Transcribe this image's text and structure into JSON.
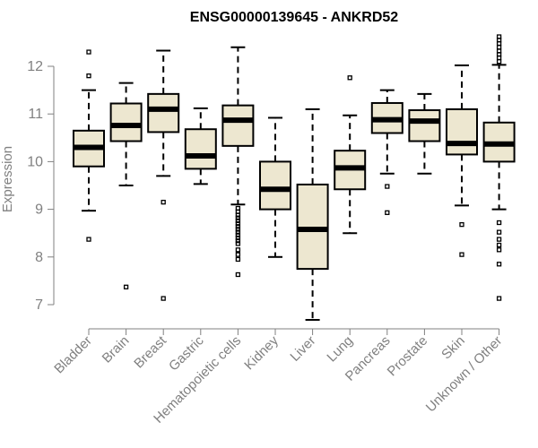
{
  "chart_data": {
    "type": "boxplot",
    "title": "ENSG00000139645 - ANKRD52",
    "xlabel": "",
    "ylabel": "Expression",
    "ylim": [
      6.6,
      12.8
    ],
    "yticks": [
      7,
      8,
      9,
      10,
      11,
      12
    ],
    "grid": false,
    "legend": "none",
    "colors": {
      "box_fill": "#ede7d0",
      "stroke": "#000000",
      "axis": "#808080"
    },
    "categories": [
      "Bladder",
      "Brain",
      "Breast",
      "Gastric",
      "Hematopoietic cells",
      "Kidney",
      "Liver",
      "Lung",
      "Pancreas",
      "Prostate",
      "Skin",
      "Unknown / Other"
    ],
    "boxes": [
      {
        "name": "Bladder",
        "q1": 9.9,
        "median": 10.3,
        "q3": 10.65,
        "whisker_low": 8.97,
        "whisker_high": 11.5,
        "outliers": [
          12.3,
          11.8,
          8.37
        ]
      },
      {
        "name": "Brain",
        "q1": 10.43,
        "median": 10.76,
        "q3": 11.22,
        "whisker_low": 9.5,
        "whisker_high": 11.65,
        "outliers": [
          7.37
        ]
      },
      {
        "name": "Breast",
        "q1": 10.62,
        "median": 11.1,
        "q3": 11.42,
        "whisker_low": 9.7,
        "whisker_high": 12.33,
        "outliers": [
          9.15,
          7.13
        ]
      },
      {
        "name": "Gastric",
        "q1": 9.85,
        "median": 10.12,
        "q3": 10.68,
        "whisker_low": 9.53,
        "whisker_high": 11.12,
        "outliers": []
      },
      {
        "name": "Hematopoietic cells",
        "q1": 10.33,
        "median": 10.87,
        "q3": 11.18,
        "whisker_low": 9.1,
        "whisker_high": 12.4,
        "outliers": [
          9.02,
          8.95,
          8.88,
          8.82,
          8.76,
          8.7,
          8.64,
          8.58,
          8.52,
          8.46,
          8.4,
          8.34,
          8.28,
          8.15,
          8.05,
          7.95,
          7.63
        ]
      },
      {
        "name": "Kidney",
        "q1": 9.0,
        "median": 9.42,
        "q3": 10.0,
        "whisker_low": 8.0,
        "whisker_high": 10.92,
        "outliers": []
      },
      {
        "name": "Liver",
        "q1": 7.75,
        "median": 8.58,
        "q3": 9.52,
        "whisker_low": 6.68,
        "whisker_high": 11.1,
        "outliers": []
      },
      {
        "name": "Lung",
        "q1": 9.42,
        "median": 9.87,
        "q3": 10.23,
        "whisker_low": 8.5,
        "whisker_high": 10.97,
        "outliers": [
          11.76
        ]
      },
      {
        "name": "Pancreas",
        "q1": 10.6,
        "median": 10.88,
        "q3": 11.23,
        "whisker_low": 9.75,
        "whisker_high": 11.5,
        "outliers": [
          9.48,
          8.93
        ]
      },
      {
        "name": "Prostate",
        "q1": 10.43,
        "median": 10.85,
        "q3": 11.08,
        "whisker_low": 9.75,
        "whisker_high": 11.42,
        "outliers": []
      },
      {
        "name": "Skin",
        "q1": 10.15,
        "median": 10.38,
        "q3": 11.1,
        "whisker_low": 9.08,
        "whisker_high": 12.02,
        "outliers": [
          8.68,
          8.05
        ]
      },
      {
        "name": "Unknown / Other",
        "q1": 10.0,
        "median": 10.37,
        "q3": 10.82,
        "whisker_low": 9.0,
        "whisker_high": 12.03,
        "outliers": [
          12.62,
          12.55,
          12.48,
          12.4,
          12.32,
          12.25,
          12.18,
          12.1,
          8.72,
          8.52,
          8.37,
          8.25,
          8.15,
          7.85,
          7.13
        ]
      }
    ]
  }
}
